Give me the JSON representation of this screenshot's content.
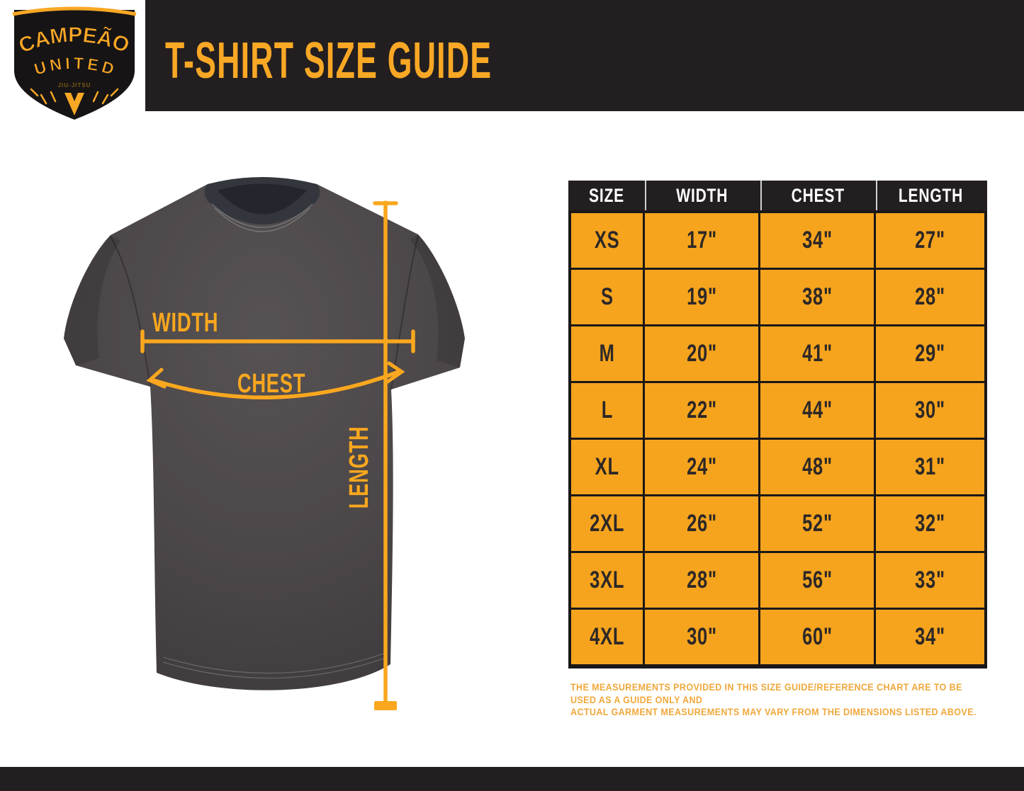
{
  "header": {
    "title": "T-SHIRT SIZE GUIDE"
  },
  "logo": {
    "line1": "CAMPEÃO",
    "line2": "UNITED",
    "tagline": "JIU-JITSU",
    "monogram": "V"
  },
  "diagram": {
    "width_label": "WIDTH",
    "chest_label": "CHEST",
    "length_label": "LENGTH"
  },
  "table": {
    "headers": [
      "SIZE",
      "WIDTH",
      "CHEST",
      "LENGTH"
    ],
    "rows": [
      [
        "XS",
        "17\"",
        "34\"",
        "27\""
      ],
      [
        "S",
        "19\"",
        "38\"",
        "28\""
      ],
      [
        "M",
        "20\"",
        "41\"",
        "29\""
      ],
      [
        "L",
        "22\"",
        "44\"",
        "30\""
      ],
      [
        "XL",
        "24\"",
        "48\"",
        "31\""
      ],
      [
        "2XL",
        "26\"",
        "52\"",
        "32\""
      ],
      [
        "3XL",
        "28\"",
        "56\"",
        "33\""
      ],
      [
        "4XL",
        "30\"",
        "60\"",
        "34\""
      ]
    ]
  },
  "note": {
    "line1": "THE MEASUREMENTS PROVIDED IN THIS SIZE GUIDE/REFERENCE CHART ARE TO BE USED AS A GUIDE ONLY AND",
    "line2": "ACTUAL GARMENT MEASUREMENTS MAY VARY FROM THE DIMENSIONS LISTED ABOVE."
  },
  "colors": {
    "accent_orange": "#F6A41E",
    "title_orange": "#F9A825",
    "annotation_orange": "#F9A71F",
    "bar_dark": "#231F20",
    "cell_text": "#2D2827",
    "shirt_gray": "#4B4647"
  }
}
